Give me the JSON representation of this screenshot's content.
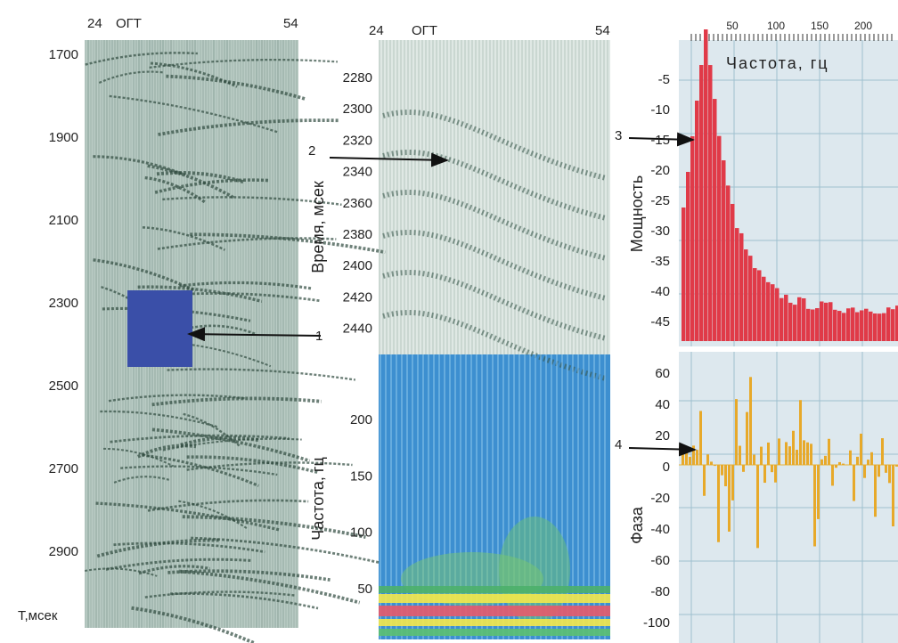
{
  "panel_a": {
    "x_start": 24,
    "x_label": "ОГТ",
    "x_end": 54,
    "y_ticks": [
      1700,
      1900,
      2100,
      2300,
      2500,
      2700,
      2900
    ],
    "y_unit": "Т,мсек",
    "marker": 1
  },
  "panel_b": {
    "x_start": 24,
    "x_label": "ОГТ",
    "x_end": 54,
    "time_axis": "Время, мсек",
    "time_ticks": [
      2280,
      2300,
      2320,
      2340,
      2360,
      2380,
      2400,
      2420,
      2440
    ],
    "marker": 2,
    "freq_axis": "Частота, гц",
    "freq_ticks": [
      200,
      150,
      100,
      50
    ]
  },
  "panel_c": {
    "freq_title": "Частота, гц",
    "freq_ticks": [
      50,
      100,
      150,
      200
    ],
    "power_axis": "Мощность",
    "power_ticks": [
      -5,
      -10,
      -15,
      -20,
      -25,
      -30,
      -35,
      -40,
      -45
    ],
    "marker_power": 3,
    "phase_axis": "Фаза",
    "phase_ticks": [
      60,
      40,
      20,
      0,
      -20,
      -40,
      -60,
      -80,
      -100
    ],
    "marker_phase": 4
  }
}
